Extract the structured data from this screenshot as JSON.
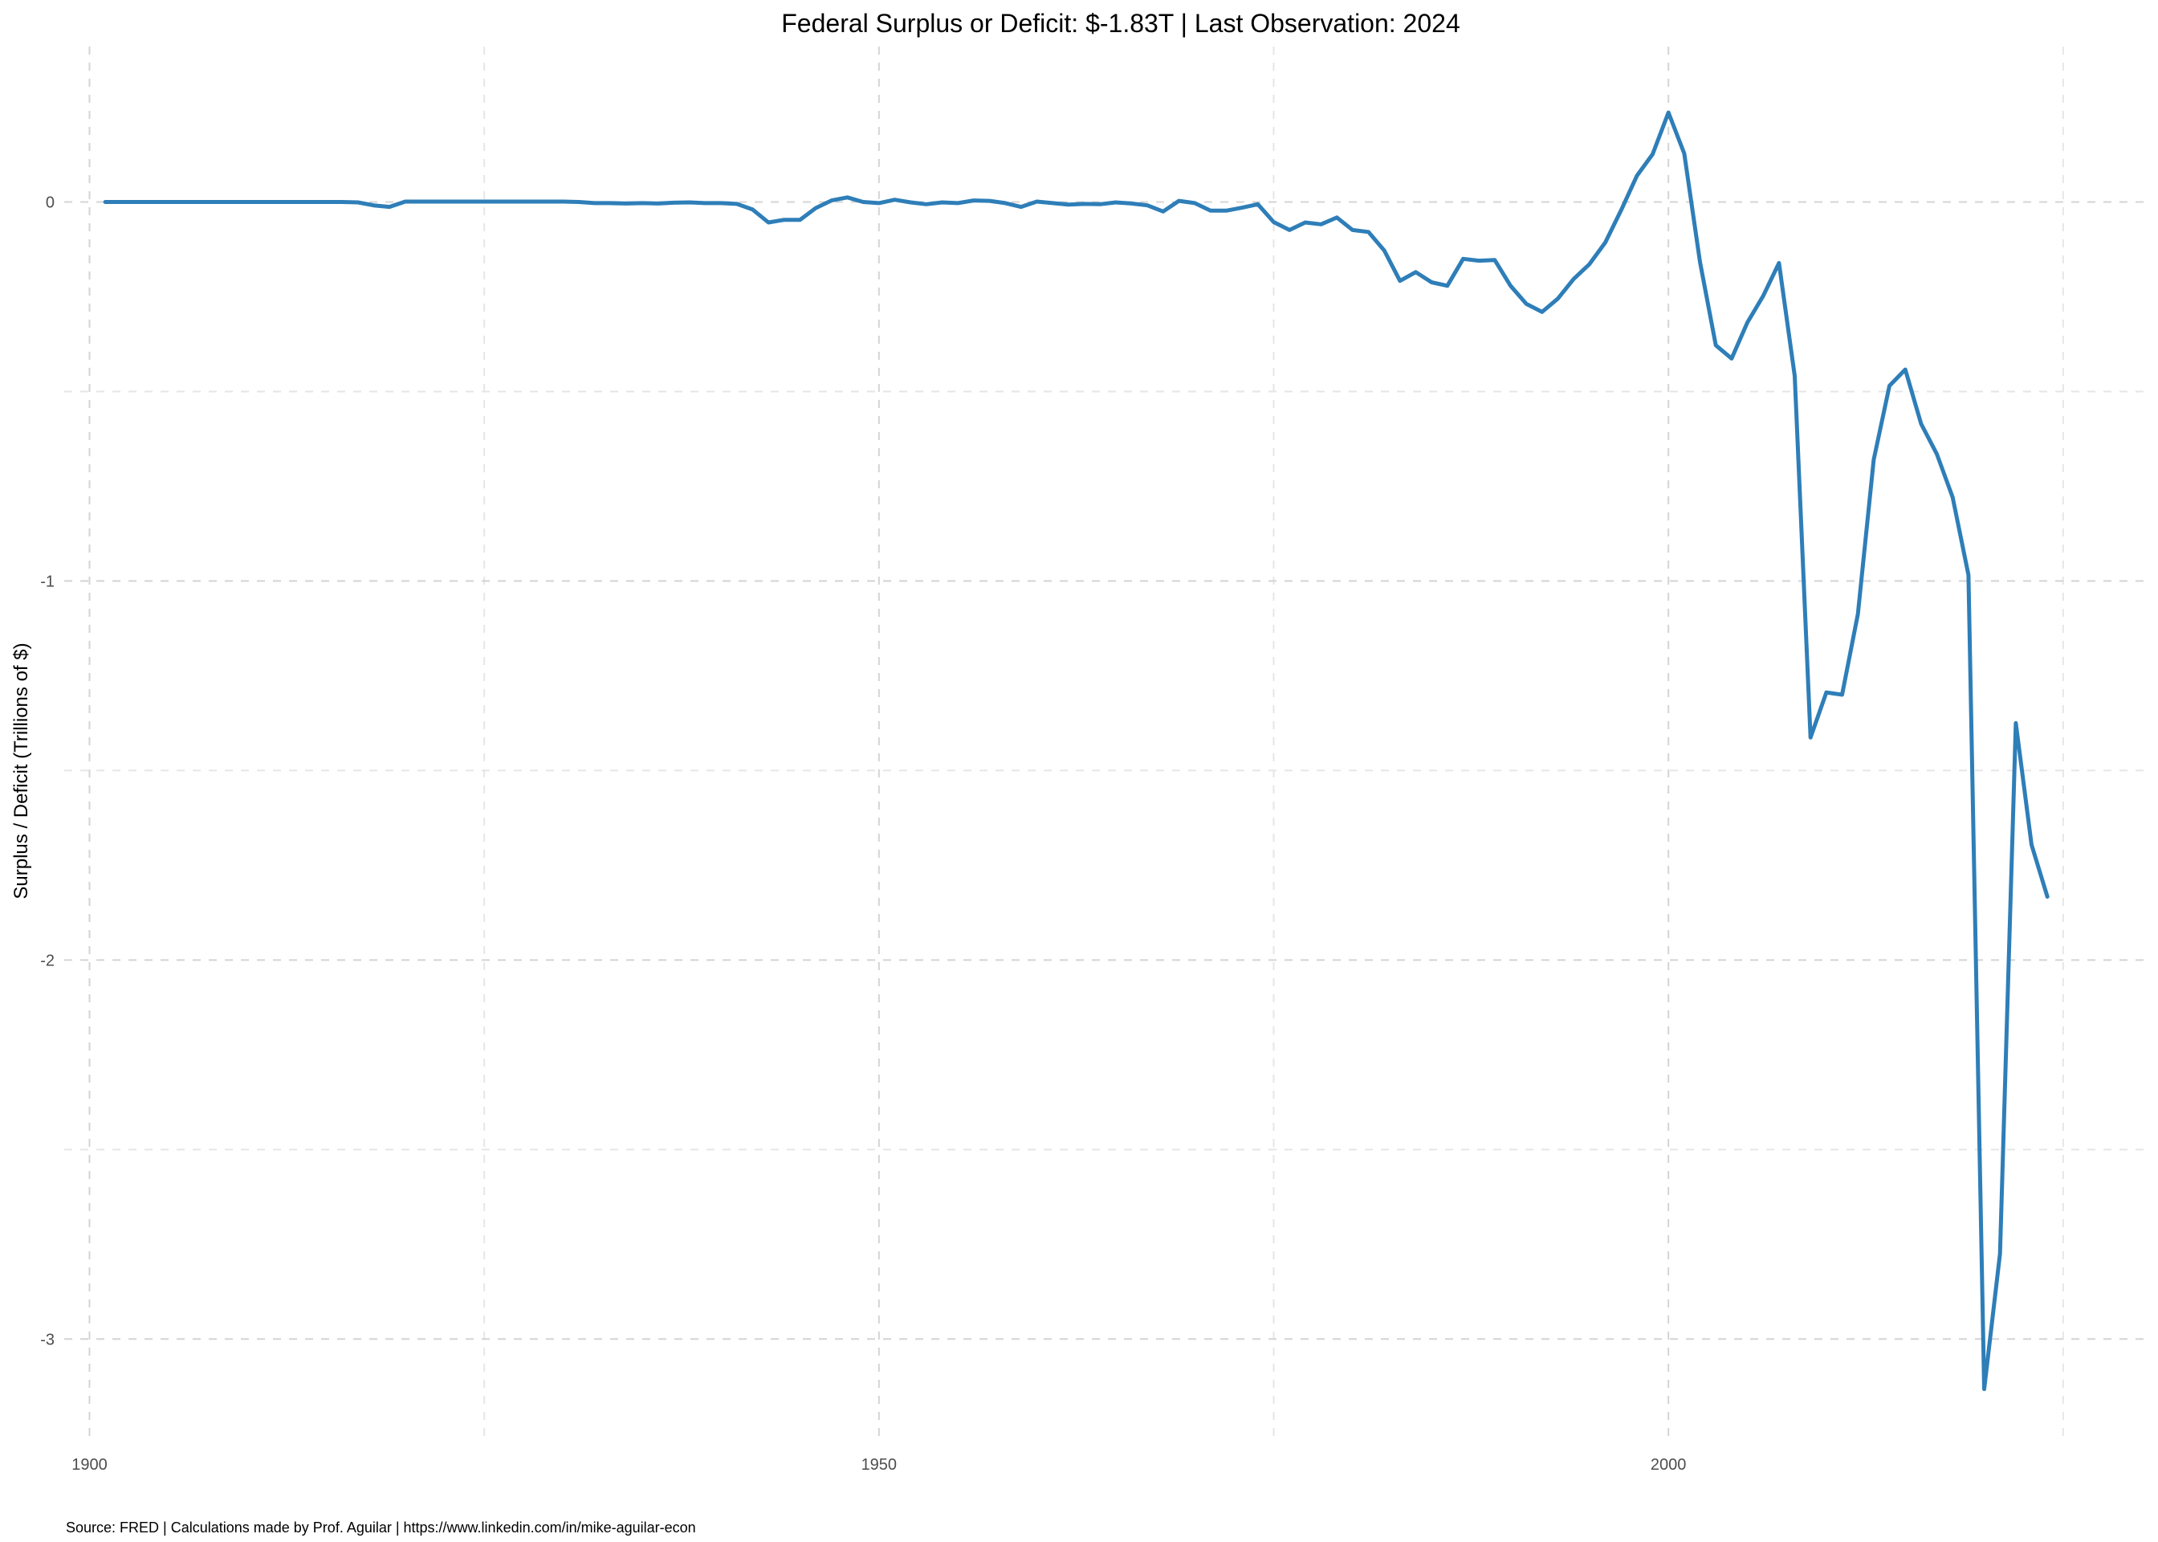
{
  "chart_data": {
    "type": "line",
    "title": "Federal Surplus or Deficit: $-1.83T | Last Observation: 2024",
    "xlabel": "",
    "ylabel": "Surplus / Deficit (Trillions of $)",
    "caption": "Source: FRED | Calculations made by Prof. Aguilar | https://www.linkedin.com/in/mike-aguilar-econ",
    "xlim": [
      1898.4,
      2030.6
    ],
    "ylim": [
      -3.26,
      0.41
    ],
    "x_ticks": [
      1900,
      1950,
      2000
    ],
    "x_tick_labels": [
      "1900",
      "1950",
      "2000"
    ],
    "y_ticks": [
      0,
      -1,
      -2,
      -3
    ],
    "y_tick_labels": [
      "0",
      "-1",
      "-2",
      "-3"
    ],
    "x_minor_ticks": [
      1925,
      1975,
      2025
    ],
    "y_minor_ticks": [
      -0.5,
      -1.5,
      -2.5
    ],
    "grid": true,
    "line_color": "#2e7eb8",
    "series": [
      {
        "x": [
          1901,
          1902,
          1903,
          1904,
          1905,
          1906,
          1907,
          1908,
          1909,
          1910,
          1911,
          1912,
          1913,
          1914,
          1915,
          1916,
          1917,
          1918,
          1919,
          1920,
          1921,
          1922,
          1923,
          1924,
          1925,
          1926,
          1927,
          1928,
          1929,
          1930,
          1931,
          1932,
          1933,
          1934,
          1935,
          1936,
          1937,
          1938,
          1939,
          1940,
          1941,
          1942,
          1943,
          1944,
          1945,
          1946,
          1947,
          1948,
          1949,
          1950,
          1951,
          1952,
          1953,
          1954,
          1955,
          1956,
          1957,
          1958,
          1959,
          1960,
          1961,
          1962,
          1963,
          1964,
          1965,
          1966,
          1967,
          1968,
          1969,
          1970,
          1971,
          1972,
          1973,
          1974,
          1975,
          1976,
          1977,
          1978,
          1979,
          1980,
          1981,
          1982,
          1983,
          1984,
          1985,
          1986,
          1987,
          1988,
          1989,
          1990,
          1991,
          1992,
          1993,
          1994,
          1995,
          1996,
          1997,
          1998,
          1999,
          2000,
          2001,
          2002,
          2003,
          2004,
          2005,
          2006,
          2007,
          2008,
          2009,
          2010,
          2011,
          2012,
          2013,
          2014,
          2015,
          2016,
          2017,
          2018,
          2019,
          2020,
          2021,
          2022,
          2023,
          2024
        ],
        "values": [
          0,
          0,
          0,
          0,
          0,
          0,
          0,
          0,
          0,
          0,
          0,
          0,
          0,
          0,
          0,
          0,
          -0.001,
          -0.009,
          -0.013,
          0.001,
          0.001,
          0.001,
          0.001,
          0.001,
          0.001,
          0.001,
          0.001,
          0.001,
          0.001,
          0.001,
          0,
          -0.003,
          -0.003,
          -0.004,
          -0.003,
          -0.004,
          -0.002,
          -0.001,
          -0.003,
          -0.003,
          -0.005,
          -0.02,
          -0.054,
          -0.047,
          -0.047,
          -0.016,
          0.004,
          0.012,
          0,
          -0.003,
          0.006,
          -0.001,
          -0.006,
          -0.001,
          -0.003,
          0.004,
          0.003,
          -0.003,
          -0.013,
          0.001,
          -0.003,
          -0.007,
          -0.005,
          -0.006,
          -0.001,
          -0.004,
          -0.009,
          -0.025,
          0.003,
          -0.003,
          -0.023,
          -0.023,
          -0.015,
          -0.006,
          -0.053,
          -0.074,
          -0.054,
          -0.059,
          -0.041,
          -0.074,
          -0.079,
          -0.128,
          -0.208,
          -0.185,
          -0.212,
          -0.221,
          -0.15,
          -0.155,
          -0.153,
          -0.221,
          -0.269,
          -0.29,
          -0.255,
          -0.203,
          -0.164,
          -0.107,
          -0.022,
          0.069,
          0.126,
          0.236,
          0.128,
          -0.158,
          -0.378,
          -0.413,
          -0.318,
          -0.248,
          -0.161,
          -0.459,
          -1.413,
          -1.294,
          -1.3,
          -1.087,
          -0.68,
          -0.485,
          -0.442,
          -0.585,
          -0.665,
          -0.779,
          -0.984,
          -3.132,
          -2.775,
          -1.375,
          -1.696,
          -1.833
        ]
      }
    ]
  }
}
